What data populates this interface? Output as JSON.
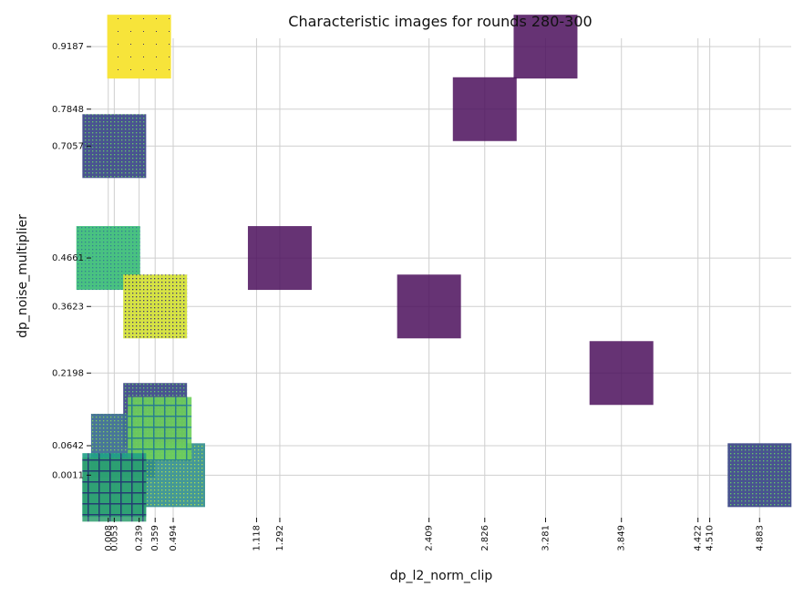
{
  "chart_data": {
    "type": "scatter",
    "title": "Characteristic images for rounds 280-300",
    "xlabel": "dp_l2_norm_clip",
    "ylabel": "dp_noise_multiplier",
    "xlim": [
      -0.12,
      5.12
    ],
    "ylim": [
      -0.09,
      0.96
    ],
    "xticks": [
      0.008,
      0.053,
      0.239,
      0.359,
      0.494,
      1.118,
      1.292,
      2.409,
      2.826,
      3.281,
      3.849,
      4.422,
      4.51,
      4.883
    ],
    "xtick_labels": [
      "0.008",
      "0.053",
      "0.239",
      "0.359",
      "0.494",
      "1.118",
      "1.292",
      "2.409",
      "2.826",
      "3.281",
      "3.849",
      "4.422",
      "4.510",
      "4.883"
    ],
    "yticks": [
      0.0011,
      0.0642,
      0.2198,
      0.3623,
      0.4661,
      0.7057,
      0.7848,
      0.9187
    ],
    "ytick_labels": [
      "0.0011",
      "0.0642",
      "0.2198",
      "0.3623",
      "0.4661",
      "0.7057",
      "0.7848",
      "0.9187"
    ],
    "grid": true,
    "points": [
      {
        "x": 0.239,
        "y": 0.9187,
        "image": "yellow-sparse"
      },
      {
        "x": 0.053,
        "y": 0.7057,
        "image": "navy-dotted"
      },
      {
        "x": 0.008,
        "y": 0.4661,
        "image": "green-dotted"
      },
      {
        "x": 0.359,
        "y": 0.3623,
        "image": "yellow-dotted"
      },
      {
        "x": 1.292,
        "y": 0.4661,
        "image": "purple-solid"
      },
      {
        "x": 2.826,
        "y": 0.7848,
        "image": "purple-solid"
      },
      {
        "x": 3.281,
        "y": 0.9187,
        "image": "purple-solid"
      },
      {
        "x": 2.409,
        "y": 0.3623,
        "image": "purple-solid"
      },
      {
        "x": 3.849,
        "y": 0.2198,
        "image": "purple-solid"
      },
      {
        "x": 4.883,
        "y": 0.0011,
        "image": "navy-dotted"
      },
      {
        "x": 0.359,
        "y": 0.1301,
        "image": "navy-dotted"
      },
      {
        "x": 0.118,
        "y": 0.0642,
        "image": "steel-dotted"
      },
      {
        "x": 0.494,
        "y": 0.0011,
        "image": "teal-dotted"
      },
      {
        "x": 0.393,
        "y": 0.1001,
        "image": "lime-grid"
      },
      {
        "x": 0.053,
        "y": -0.0201,
        "image": "cyan-grid"
      },
      {
        "x": 0.053,
        "y": -0.0301,
        "image": "green-grid"
      }
    ],
    "image_styles": {
      "yellow-sparse": {
        "base": "#f7e43a",
        "accent": "#3b2f6b",
        "alpha": 1.0
      },
      "navy-dotted": {
        "base": "#3f4a8a",
        "accent": "#5ec962",
        "alpha": 0.95
      },
      "green-dotted": {
        "base": "#3fbf7a",
        "accent": "#2a788e",
        "alpha": 0.95
      },
      "yellow-dotted": {
        "base": "#d4e13a",
        "accent": "#3a2f6b",
        "alpha": 0.95
      },
      "purple-solid": {
        "base": "#4b0f5c",
        "accent": "#4b0f5c",
        "alpha": 0.85
      },
      "steel-dotted": {
        "base": "#3e6e94",
        "accent": "#7ad151",
        "alpha": 0.95
      },
      "teal-dotted": {
        "base": "#2f8c8c",
        "accent": "#a0da39",
        "alpha": 0.9
      },
      "lime-grid": {
        "base": "#6fd05a",
        "accent": "#26828e",
        "alpha": 0.9
      },
      "cyan-grid": {
        "base": "#1fa187",
        "accent": "#2c3e7a",
        "alpha": 0.9
      },
      "green-grid": {
        "base": "#2e9f6e",
        "accent": "#1e3a6e",
        "alpha": 0.85
      }
    }
  }
}
